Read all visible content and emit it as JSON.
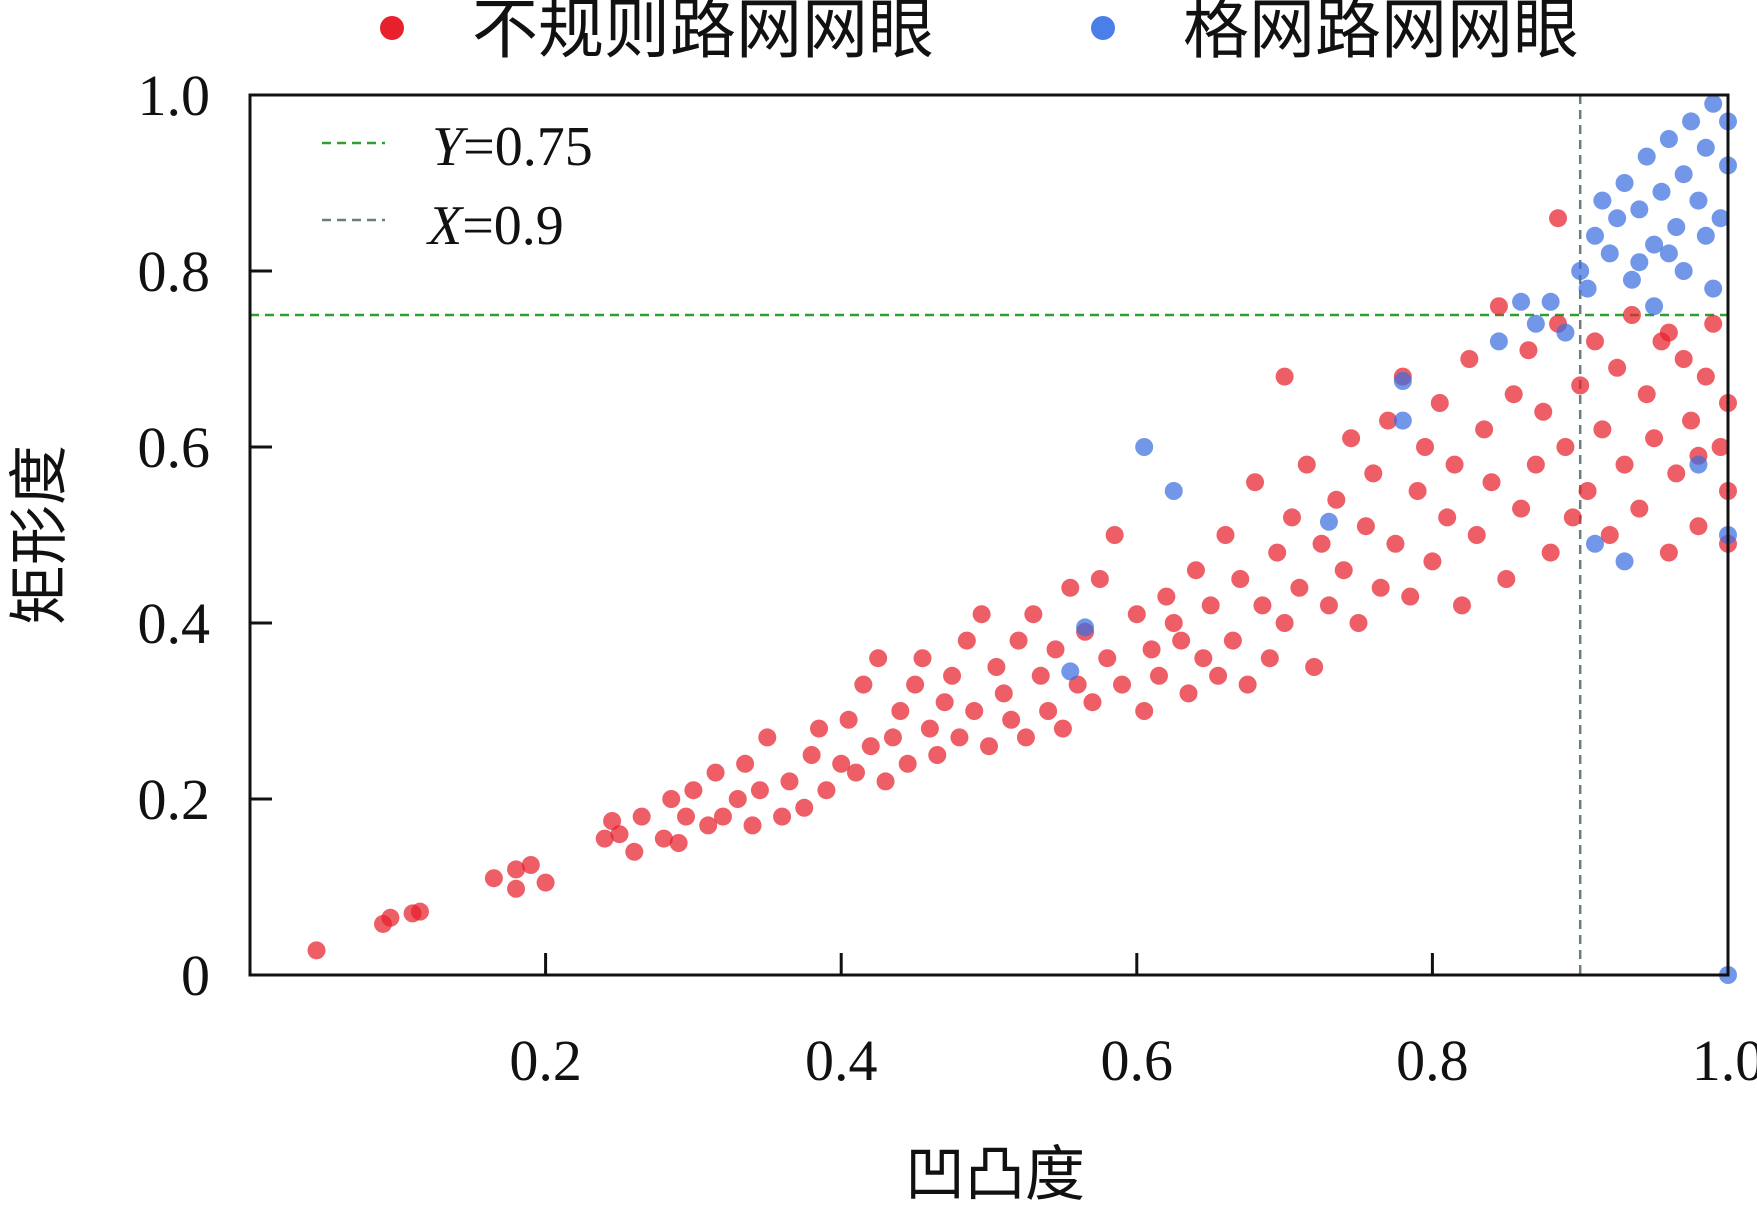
{
  "chart_data": {
    "type": "scatter",
    "title": "",
    "xlabel": "凹凸度",
    "ylabel": "矩形度",
    "xlim": [
      0,
      1.0
    ],
    "ylim": [
      0,
      1.0
    ],
    "xticks": [
      {
        "value": 0.2,
        "label": "0.2"
      },
      {
        "value": 0.4,
        "label": "0.4"
      },
      {
        "value": 0.6,
        "label": "0.6"
      },
      {
        "value": 0.8,
        "label": "0.8"
      },
      {
        "value": 1.0,
        "label": "1.0"
      }
    ],
    "yticks": [
      {
        "value": 0,
        "label": "0"
      },
      {
        "value": 0.2,
        "label": "0.2"
      },
      {
        "value": 0.4,
        "label": "0.4"
      },
      {
        "value": 0.6,
        "label": "0.6"
      },
      {
        "value": 0.8,
        "label": "0.8"
      },
      {
        "value": 1.0,
        "label": "1.0"
      }
    ],
    "legend_position": "top-outside",
    "grid": false,
    "series": [
      {
        "name": "不规则路网网眼",
        "color": "#e8202c",
        "points": [
          [
            0.045,
            0.028
          ],
          [
            0.09,
            0.058
          ],
          [
            0.095,
            0.065
          ],
          [
            0.11,
            0.07
          ],
          [
            0.115,
            0.072
          ],
          [
            0.165,
            0.11
          ],
          [
            0.18,
            0.098
          ],
          [
            0.18,
            0.12
          ],
          [
            0.19,
            0.125
          ],
          [
            0.2,
            0.105
          ],
          [
            0.24,
            0.155
          ],
          [
            0.245,
            0.175
          ],
          [
            0.25,
            0.16
          ],
          [
            0.26,
            0.14
          ],
          [
            0.265,
            0.18
          ],
          [
            0.28,
            0.155
          ],
          [
            0.285,
            0.2
          ],
          [
            0.29,
            0.15
          ],
          [
            0.295,
            0.18
          ],
          [
            0.3,
            0.21
          ],
          [
            0.31,
            0.17
          ],
          [
            0.315,
            0.23
          ],
          [
            0.32,
            0.18
          ],
          [
            0.33,
            0.2
          ],
          [
            0.335,
            0.24
          ],
          [
            0.34,
            0.17
          ],
          [
            0.345,
            0.21
          ],
          [
            0.35,
            0.27
          ],
          [
            0.36,
            0.18
          ],
          [
            0.365,
            0.22
          ],
          [
            0.375,
            0.19
          ],
          [
            0.38,
            0.25
          ],
          [
            0.385,
            0.28
          ],
          [
            0.39,
            0.21
          ],
          [
            0.4,
            0.24
          ],
          [
            0.405,
            0.29
          ],
          [
            0.41,
            0.23
          ],
          [
            0.415,
            0.33
          ],
          [
            0.42,
            0.26
          ],
          [
            0.425,
            0.36
          ],
          [
            0.43,
            0.22
          ],
          [
            0.435,
            0.27
          ],
          [
            0.44,
            0.3
          ],
          [
            0.445,
            0.24
          ],
          [
            0.45,
            0.33
          ],
          [
            0.455,
            0.36
          ],
          [
            0.46,
            0.28
          ],
          [
            0.465,
            0.25
          ],
          [
            0.47,
            0.31
          ],
          [
            0.475,
            0.34
          ],
          [
            0.48,
            0.27
          ],
          [
            0.485,
            0.38
          ],
          [
            0.49,
            0.3
          ],
          [
            0.495,
            0.41
          ],
          [
            0.5,
            0.26
          ],
          [
            0.505,
            0.35
          ],
          [
            0.51,
            0.32
          ],
          [
            0.515,
            0.29
          ],
          [
            0.52,
            0.38
          ],
          [
            0.525,
            0.27
          ],
          [
            0.53,
            0.41
          ],
          [
            0.535,
            0.34
          ],
          [
            0.54,
            0.3
          ],
          [
            0.545,
            0.37
          ],
          [
            0.55,
            0.28
          ],
          [
            0.555,
            0.44
          ],
          [
            0.56,
            0.33
          ],
          [
            0.565,
            0.39
          ],
          [
            0.57,
            0.31
          ],
          [
            0.575,
            0.45
          ],
          [
            0.58,
            0.36
          ],
          [
            0.585,
            0.5
          ],
          [
            0.59,
            0.33
          ],
          [
            0.6,
            0.41
          ],
          [
            0.605,
            0.3
          ],
          [
            0.61,
            0.37
          ],
          [
            0.615,
            0.34
          ],
          [
            0.62,
            0.43
          ],
          [
            0.625,
            0.4
          ],
          [
            0.63,
            0.38
          ],
          [
            0.635,
            0.32
          ],
          [
            0.64,
            0.46
          ],
          [
            0.645,
            0.36
          ],
          [
            0.65,
            0.42
          ],
          [
            0.655,
            0.34
          ],
          [
            0.66,
            0.5
          ],
          [
            0.665,
            0.38
          ],
          [
            0.67,
            0.45
          ],
          [
            0.675,
            0.33
          ],
          [
            0.68,
            0.56
          ],
          [
            0.685,
            0.42
          ],
          [
            0.69,
            0.36
          ],
          [
            0.695,
            0.48
          ],
          [
            0.7,
            0.68
          ],
          [
            0.7,
            0.4
          ],
          [
            0.705,
            0.52
          ],
          [
            0.71,
            0.44
          ],
          [
            0.715,
            0.58
          ],
          [
            0.72,
            0.35
          ],
          [
            0.725,
            0.49
          ],
          [
            0.73,
            0.42
          ],
          [
            0.735,
            0.54
          ],
          [
            0.74,
            0.46
          ],
          [
            0.745,
            0.61
          ],
          [
            0.75,
            0.4
          ],
          [
            0.755,
            0.51
          ],
          [
            0.76,
            0.57
          ],
          [
            0.765,
            0.44
          ],
          [
            0.77,
            0.63
          ],
          [
            0.775,
            0.49
          ],
          [
            0.78,
            0.68
          ],
          [
            0.785,
            0.43
          ],
          [
            0.79,
            0.55
          ],
          [
            0.795,
            0.6
          ],
          [
            0.8,
            0.47
          ],
          [
            0.805,
            0.65
          ],
          [
            0.81,
            0.52
          ],
          [
            0.815,
            0.58
          ],
          [
            0.82,
            0.42
          ],
          [
            0.825,
            0.7
          ],
          [
            0.83,
            0.5
          ],
          [
            0.835,
            0.62
          ],
          [
            0.84,
            0.56
          ],
          [
            0.845,
            0.76
          ],
          [
            0.85,
            0.45
          ],
          [
            0.855,
            0.66
          ],
          [
            0.86,
            0.53
          ],
          [
            0.865,
            0.71
          ],
          [
            0.87,
            0.58
          ],
          [
            0.875,
            0.64
          ],
          [
            0.88,
            0.48
          ],
          [
            0.885,
            0.86
          ],
          [
            0.885,
            0.74
          ],
          [
            0.89,
            0.6
          ],
          [
            0.895,
            0.52
          ],
          [
            0.9,
            0.67
          ],
          [
            0.905,
            0.55
          ],
          [
            0.91,
            0.72
          ],
          [
            0.915,
            0.62
          ],
          [
            0.92,
            0.5
          ],
          [
            0.925,
            0.69
          ],
          [
            0.93,
            0.58
          ],
          [
            0.935,
            0.75
          ],
          [
            0.94,
            0.53
          ],
          [
            0.945,
            0.66
          ],
          [
            0.95,
            0.61
          ],
          [
            0.955,
            0.72
          ],
          [
            0.96,
            0.48
          ],
          [
            0.965,
            0.57
          ],
          [
            0.97,
            0.7
          ],
          [
            0.975,
            0.63
          ],
          [
            0.98,
            0.51
          ],
          [
            0.985,
            0.68
          ],
          [
            0.99,
            0.74
          ],
          [
            0.995,
            0.6
          ],
          [
            1.0,
            0.55
          ],
          [
            1.0,
            0.49
          ],
          [
            1.0,
            0.65
          ],
          [
            0.98,
            0.59
          ],
          [
            0.96,
            0.73
          ]
        ]
      },
      {
        "name": "格网路网网眼",
        "color": "#3b6fe0",
        "points": [
          [
            0.555,
            0.345
          ],
          [
            0.565,
            0.395
          ],
          [
            0.605,
            0.6
          ],
          [
            0.625,
            0.55
          ],
          [
            0.73,
            0.515
          ],
          [
            0.78,
            0.63
          ],
          [
            0.78,
            0.675
          ],
          [
            0.845,
            0.72
          ],
          [
            0.86,
            0.765
          ],
          [
            0.87,
            0.74
          ],
          [
            0.88,
            0.765
          ],
          [
            0.89,
            0.73
          ],
          [
            0.9,
            0.8
          ],
          [
            0.905,
            0.78
          ],
          [
            0.91,
            0.84
          ],
          [
            0.915,
            0.88
          ],
          [
            0.92,
            0.82
          ],
          [
            0.925,
            0.86
          ],
          [
            0.93,
            0.9
          ],
          [
            0.935,
            0.79
          ],
          [
            0.94,
            0.87
          ],
          [
            0.945,
            0.93
          ],
          [
            0.95,
            0.83
          ],
          [
            0.955,
            0.89
          ],
          [
            0.96,
            0.95
          ],
          [
            0.965,
            0.85
          ],
          [
            0.97,
            0.91
          ],
          [
            0.975,
            0.97
          ],
          [
            0.98,
            0.88
          ],
          [
            0.985,
            0.94
          ],
          [
            0.99,
            0.99
          ],
          [
            0.995,
            0.86
          ],
          [
            1.0,
            0.92
          ],
          [
            1.0,
            0.97
          ],
          [
            0.97,
            0.8
          ],
          [
            0.95,
            0.76
          ],
          [
            0.99,
            0.78
          ],
          [
            0.93,
            0.47
          ],
          [
            0.98,
            0.58
          ],
          [
            1.0,
            0.5
          ],
          [
            1.0,
            0.0
          ],
          [
            0.91,
            0.49
          ],
          [
            0.96,
            0.82
          ],
          [
            0.985,
            0.84
          ],
          [
            0.94,
            0.81
          ]
        ]
      }
    ],
    "reference_lines": [
      {
        "label_var": "Y",
        "label_value": "=0.75",
        "axis": "y",
        "value": 0.75,
        "color": "#2ea02c"
      },
      {
        "label_var": "X",
        "label_value": "=0.9",
        "axis": "x",
        "value": 0.9,
        "color": "#6b7d7d"
      }
    ]
  }
}
